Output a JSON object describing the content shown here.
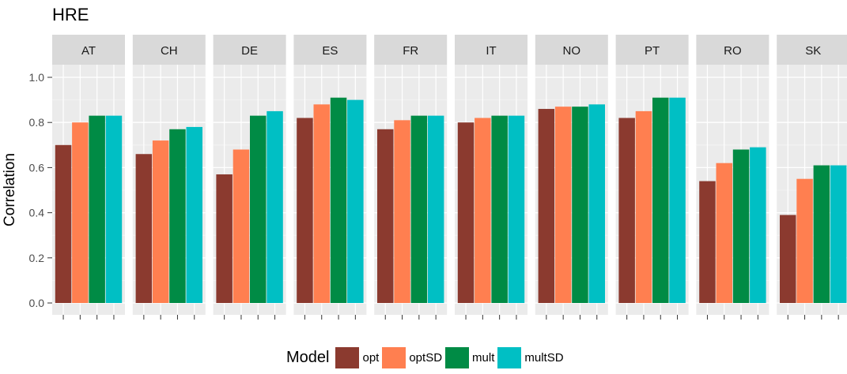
{
  "chart_data": {
    "type": "bar",
    "title": "HRE",
    "xlabel": "",
    "ylabel": "Correlation",
    "ylim": [
      0,
      1.0
    ],
    "yticks": [
      "0.0",
      "0.2",
      "0.4",
      "0.6",
      "0.8",
      "1.0"
    ],
    "grid": true,
    "facets": [
      "AT",
      "CH",
      "DE",
      "ES",
      "FR",
      "IT",
      "NO",
      "PT",
      "RO",
      "SK"
    ],
    "legend": {
      "title": "Model",
      "placement": "bottom"
    },
    "series": [
      {
        "name": "opt",
        "color": "#8B3A2F",
        "values": [
          0.7,
          0.66,
          0.57,
          0.82,
          0.77,
          0.8,
          0.86,
          0.82,
          0.54,
          0.39
        ]
      },
      {
        "name": "optSD",
        "color": "#FF7F50",
        "values": [
          0.8,
          0.72,
          0.68,
          0.88,
          0.81,
          0.82,
          0.87,
          0.85,
          0.62,
          0.55
        ]
      },
      {
        "name": "mult",
        "color": "#008B45",
        "values": [
          0.83,
          0.77,
          0.83,
          0.91,
          0.83,
          0.83,
          0.87,
          0.91,
          0.68,
          0.61
        ]
      },
      {
        "name": "multSD",
        "color": "#00BFC4",
        "values": [
          0.83,
          0.78,
          0.85,
          0.9,
          0.83,
          0.83,
          0.88,
          0.91,
          0.69,
          0.61
        ]
      }
    ]
  }
}
